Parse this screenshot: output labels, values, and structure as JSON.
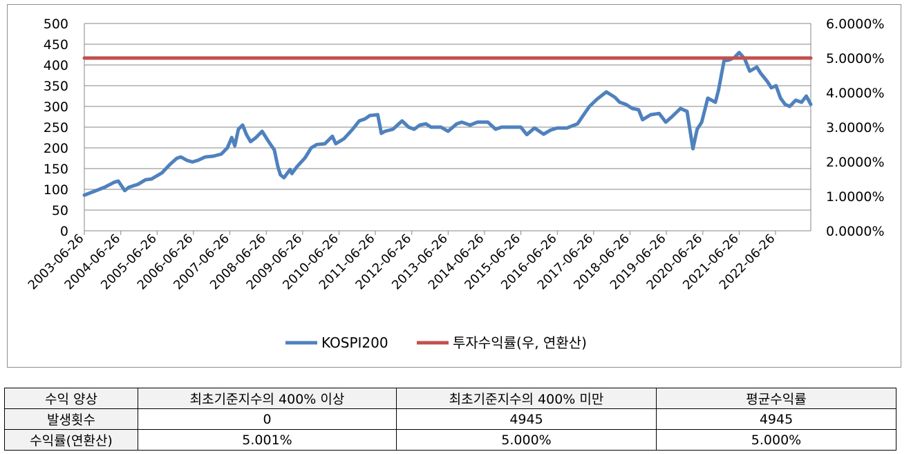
{
  "chart_data": {
    "type": "line",
    "legend_position": "bottom",
    "grid": true,
    "x_tick_labels": [
      "2003-06-26",
      "2004-06-26",
      "2005-06-26",
      "2006-06-26",
      "2007-06-26",
      "2008-06-26",
      "2009-06-26",
      "2010-06-26",
      "2011-06-26",
      "2012-06-26",
      "2013-06-26",
      "2014-06-26",
      "2015-06-26",
      "2016-06-26",
      "2017-06-26",
      "2018-06-26",
      "2019-06-26",
      "2020-06-26",
      "2021-06-26",
      "2022-06-26"
    ],
    "y_left": {
      "min": 0,
      "max": 500,
      "ticks": [
        "0",
        "50",
        "100",
        "150",
        "200",
        "250",
        "300",
        "350",
        "400",
        "450",
        "500"
      ]
    },
    "y_right": {
      "min": 0,
      "max": 0.06,
      "ticks": [
        "0.0000%",
        "1.0000%",
        "2.0000%",
        "3.0000%",
        "4.0000%",
        "5.0000%",
        "6.0000%"
      ]
    },
    "series": [
      {
        "name": "KOSPI200",
        "axis": "left",
        "color": "#4f81bd",
        "x": [
          "2003-06-26",
          "2003-10-01",
          "2004-01-15",
          "2004-04-20",
          "2004-06-01",
          "2004-08-05",
          "2004-09-15",
          "2004-12-15",
          "2005-03-01",
          "2005-05-01",
          "2005-08-15",
          "2005-11-01",
          "2006-01-10",
          "2006-02-20",
          "2006-04-20",
          "2006-06-15",
          "2006-08-10",
          "2006-10-20",
          "2007-01-10",
          "2007-04-01",
          "2007-06-01",
          "2007-07-15",
          "2007-08-15",
          "2007-09-20",
          "2007-11-01",
          "2007-12-10",
          "2008-01-20",
          "2008-03-15",
          "2008-05-15",
          "2008-07-20",
          "2008-09-15",
          "2008-10-20",
          "2008-11-15",
          "2008-12-20",
          "2009-02-20",
          "2009-03-10",
          "2009-05-01",
          "2009-07-20",
          "2009-09-20",
          "2009-11-15",
          "2010-02-05",
          "2010-04-20",
          "2010-05-25",
          "2010-08-15",
          "2010-11-10",
          "2011-01-15",
          "2011-03-15",
          "2011-05-01",
          "2011-07-20",
          "2011-08-25",
          "2011-10-01",
          "2011-12-20",
          "2012-03-20",
          "2012-05-25",
          "2012-07-20",
          "2012-09-15",
          "2012-11-15",
          "2013-01-05",
          "2013-04-15",
          "2013-06-25",
          "2013-09-20",
          "2013-11-10",
          "2014-02-01",
          "2014-04-15",
          "2014-07-30",
          "2014-10-15",
          "2014-12-15",
          "2015-04-20",
          "2015-06-25",
          "2015-08-25",
          "2015-11-10",
          "2016-02-10",
          "2016-04-20",
          "2016-06-25",
          "2016-10-01",
          "2017-01-15",
          "2017-04-01",
          "2017-05-15",
          "2017-08-01",
          "2017-11-01",
          "2018-01-25",
          "2018-03-15",
          "2018-05-15",
          "2018-07-20",
          "2018-09-20",
          "2018-10-30",
          "2019-01-20",
          "2019-04-15",
          "2019-06-20",
          "2019-08-20",
          "2019-11-15",
          "2020-01-20",
          "2020-03-19",
          "2020-04-30",
          "2020-06-15",
          "2020-08-15",
          "2020-10-30",
          "2020-12-01",
          "2021-01-25",
          "2021-03-15",
          "2021-05-10",
          "2021-06-26",
          "2021-08-20",
          "2021-10-10",
          "2021-12-20",
          "2022-01-28",
          "2022-04-05",
          "2022-05-15",
          "2022-07-01",
          "2022-08-15",
          "2022-09-30",
          "2022-11-15",
          "2023-01-15",
          "2023-03-15",
          "2023-05-01",
          "2023-06-15"
        ],
        "values": [
          86,
          95,
          105,
          117,
          120,
          97,
          105,
          112,
          123,
          125,
          140,
          160,
          175,
          178,
          170,
          166,
          170,
          178,
          180,
          185,
          200,
          225,
          205,
          245,
          255,
          232,
          215,
          225,
          240,
          215,
          195,
          155,
          135,
          128,
          148,
          138,
          155,
          176,
          200,
          208,
          210,
          228,
          210,
          222,
          245,
          265,
          270,
          278,
          280,
          235,
          240,
          245,
          265,
          250,
          245,
          255,
          258,
          250,
          250,
          240,
          258,
          262,
          255,
          262,
          262,
          245,
          250,
          250,
          250,
          232,
          248,
          233,
          243,
          248,
          248,
          258,
          285,
          300,
          318,
          335,
          322,
          310,
          305,
          295,
          292,
          268,
          280,
          283,
          262,
          275,
          295,
          288,
          198,
          245,
          262,
          320,
          310,
          340,
          410,
          412,
          418,
          430,
          415,
          385,
          395,
          380,
          360,
          345,
          350,
          320,
          305,
          300,
          315,
          310,
          325,
          305
        ]
      },
      {
        "name": "투자수익률(우, 연환산)",
        "axis": "right",
        "color": "#c0504d",
        "x": [
          "2003-06-26",
          "2023-06-15"
        ],
        "values": [
          0.05,
          0.05
        ]
      }
    ]
  },
  "table": {
    "header": [
      "수익 양상",
      "최초기준지수의 400% 이상",
      "최초기준지수의 400% 미만",
      "평균수익률"
    ],
    "rows": [
      {
        "label": "발생횟수",
        "values": [
          "0",
          "4945",
          "4945"
        ]
      },
      {
        "label": "수익률(연환산)",
        "values": [
          "5.001%",
          "5.000%",
          "5.000%"
        ]
      }
    ]
  }
}
